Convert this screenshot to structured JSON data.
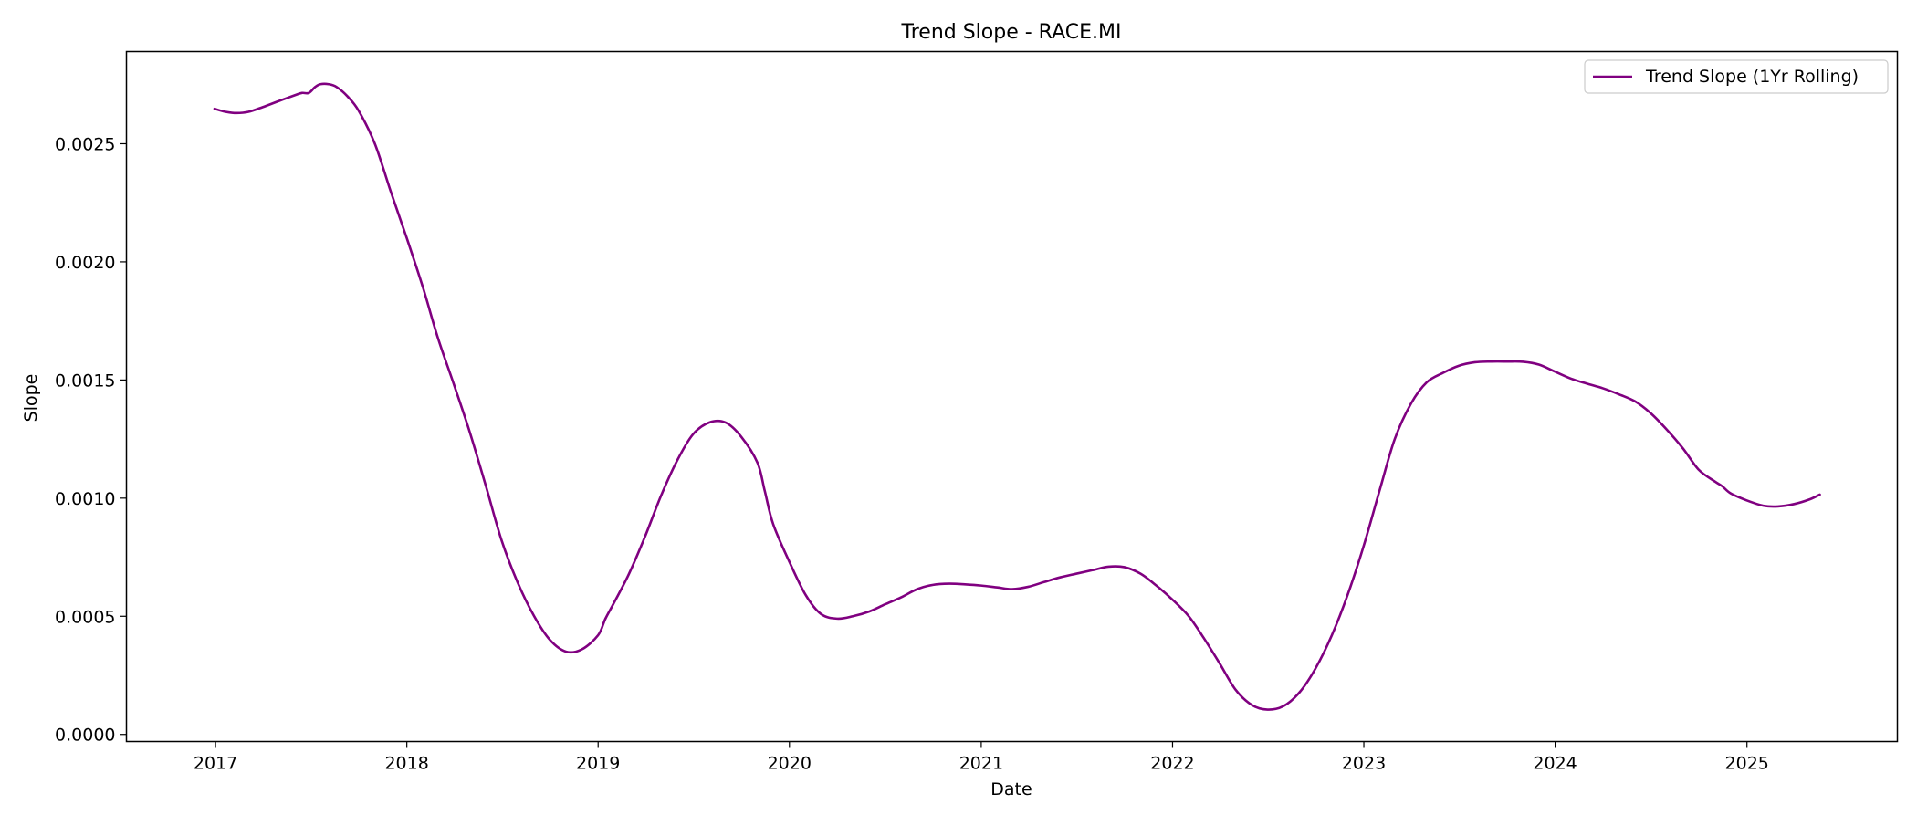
{
  "chart_data": {
    "type": "line",
    "title": "Trend Slope - RACE.MI",
    "xlabel": "Date",
    "ylabel": "Slope",
    "x_ticks": [
      "2017",
      "2018",
      "2019",
      "2020",
      "2021",
      "2022",
      "2023",
      "2024",
      "2025"
    ],
    "y_ticks": [
      "0.0000",
      "0.0005",
      "0.0010",
      "0.0015",
      "0.0020",
      "0.0025"
    ],
    "xlim": [
      "2016-07-15",
      "2025-10-15"
    ],
    "ylim": [
      -3e-05,
      0.00289
    ],
    "grid": false,
    "legend_position": "top-right",
    "series": [
      {
        "name": "Trend Slope (1Yr Rolling)",
        "color": "#800080",
        "x": [
          "2016-12-30",
          "2017-01-20",
          "2017-02-10",
          "2017-03-05",
          "2017-04-01",
          "2017-05-01",
          "2017-06-01",
          "2017-06-15",
          "2017-06-28",
          "2017-07-10",
          "2017-07-20",
          "2017-08-05",
          "2017-08-20",
          "2017-09-10",
          "2017-10-01",
          "2017-11-01",
          "2017-12-01",
          "2018-01-01",
          "2018-02-01",
          "2018-03-01",
          "2018-04-01",
          "2018-05-01",
          "2018-06-01",
          "2018-07-01",
          "2018-08-01",
          "2018-09-01",
          "2018-10-01",
          "2018-11-01",
          "2018-12-01",
          "2019-01-01",
          "2019-01-15",
          "2019-02-01",
          "2019-03-01",
          "2019-04-01",
          "2019-05-01",
          "2019-06-01",
          "2019-07-01",
          "2019-08-01",
          "2019-09-01",
          "2019-10-01",
          "2019-11-01",
          "2019-11-15",
          "2019-12-01",
          "2020-01-01",
          "2020-02-01",
          "2020-03-01",
          "2020-04-01",
          "2020-05-01",
          "2020-06-01",
          "2020-07-01",
          "2020-08-01",
          "2020-09-01",
          "2020-10-01",
          "2020-11-01",
          "2020-12-01",
          "2021-01-01",
          "2021-02-01",
          "2021-03-01",
          "2021-04-01",
          "2021-05-01",
          "2021-06-01",
          "2021-07-01",
          "2021-08-01",
          "2021-09-01",
          "2021-10-01",
          "2021-11-01",
          "2021-12-01",
          "2022-01-01",
          "2022-02-01",
          "2022-03-01",
          "2022-04-01",
          "2022-05-01",
          "2022-06-01",
          "2022-07-01",
          "2022-08-01",
          "2022-09-01",
          "2022-10-01",
          "2022-11-01",
          "2022-12-01",
          "2023-01-01",
          "2023-02-01",
          "2023-03-01",
          "2023-04-01",
          "2023-05-01",
          "2023-06-01",
          "2023-07-01",
          "2023-08-01",
          "2023-09-01",
          "2023-10-01",
          "2023-11-01",
          "2023-12-01",
          "2024-01-01",
          "2024-02-01",
          "2024-03-01",
          "2024-04-01",
          "2024-05-01",
          "2024-06-01",
          "2024-07-01",
          "2024-08-01",
          "2024-09-01",
          "2024-10-01",
          "2024-11-01",
          "2024-11-15",
          "2024-12-01",
          "2025-01-01",
          "2025-02-01",
          "2025-03-01",
          "2025-04-01",
          "2025-05-01",
          "2025-05-20"
        ],
        "y": [
          0.002648,
          0.002635,
          0.00263,
          0.002635,
          0.002655,
          0.00268,
          0.002705,
          0.002715,
          0.002715,
          0.00274,
          0.002752,
          0.002752,
          0.00274,
          0.0027,
          0.00264,
          0.0025,
          0.0023,
          0.0021,
          0.00189,
          0.00168,
          0.00148,
          0.00128,
          0.00105,
          0.00082,
          0.00064,
          0.0005,
          0.0004,
          0.00035,
          0.00036,
          0.00042,
          0.00049,
          0.00056,
          0.00068,
          0.00084,
          0.00101,
          0.00116,
          0.00127,
          0.00132,
          0.00132,
          0.00126,
          0.00115,
          0.00103,
          0.00089,
          0.00073,
          0.00059,
          0.00051,
          0.00049,
          0.0005,
          0.00052,
          0.00055,
          0.00058,
          0.000615,
          0.000633,
          0.000638,
          0.000635,
          0.00063,
          0.000622,
          0.000615,
          0.000625,
          0.000645,
          0.000665,
          0.00068,
          0.000695,
          0.00071,
          0.000708,
          0.00068,
          0.00063,
          0.00057,
          0.0005,
          0.00041,
          0.0003,
          0.00019,
          0.000125,
          0.000105,
          0.00012,
          0.00018,
          0.00028,
          0.00042,
          0.00059,
          0.0008,
          0.00104,
          0.00125,
          0.0014,
          0.00149,
          0.00153,
          0.00156,
          0.001575,
          0.001578,
          0.001578,
          0.001577,
          0.001565,
          0.001535,
          0.001505,
          0.001485,
          0.001465,
          0.00144,
          0.00141,
          0.00136,
          0.00129,
          0.00121,
          0.00112,
          0.00107,
          0.00105,
          0.00102,
          0.00099,
          0.000968,
          0.000965,
          0.000975,
          0.000995,
          0.001015
        ]
      }
    ]
  }
}
